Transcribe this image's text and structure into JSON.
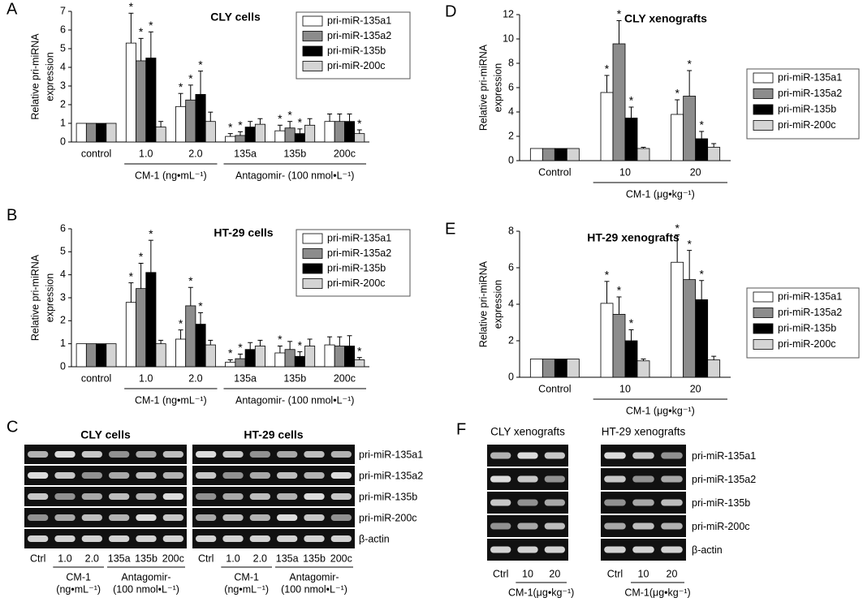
{
  "chart_data": [
    {
      "type": "bar",
      "panel": "A",
      "title": "CLY cells",
      "ylabel_lines": [
        "Relative pri-miRNA",
        "expression"
      ],
      "categories": [
        "control",
        "1.0",
        "2.0",
        "135a",
        "135b",
        "200c"
      ],
      "category_groups": [
        "CM-1 (ng•mL⁻¹)",
        "Antagomir- (100 nmol•L⁻¹)"
      ],
      "ylim": [
        0,
        7
      ],
      "yticks": [
        0,
        1,
        2,
        3,
        4,
        5,
        6,
        7
      ],
      "legend": "upper right",
      "series": [
        {
          "name": "pri-miR-135a1",
          "color": "#ffffff",
          "values": [
            1,
            5.3,
            1.9,
            0.3,
            0.6,
            1.1
          ],
          "errors": [
            0,
            1.6,
            0.7,
            0.15,
            0.3,
            0.4
          ],
          "stars": [
            null,
            "*",
            "*",
            "*",
            "*",
            null
          ]
        },
        {
          "name": "pri-miR-135a2",
          "color": "#8c8c8c",
          "values": [
            1,
            4.35,
            2.25,
            0.35,
            0.75,
            1.1
          ],
          "errors": [
            0,
            1.2,
            0.8,
            0.2,
            0.35,
            0.4
          ],
          "stars": [
            null,
            "*",
            "*",
            "*",
            "*",
            null
          ]
        },
        {
          "name": "pri-miR-135b",
          "color": "#000000",
          "values": [
            1,
            4.5,
            2.55,
            0.8,
            0.45,
            1.1
          ],
          "errors": [
            0,
            1.4,
            1.25,
            0.3,
            0.25,
            0.4
          ],
          "stars": [
            null,
            "*",
            "*",
            null,
            "*",
            null
          ]
        },
        {
          "name": "pri-miR-200c",
          "color": "#d4d4d4",
          "values": [
            1,
            0.8,
            1.1,
            0.95,
            0.9,
            0.45
          ],
          "errors": [
            0,
            0.3,
            0.5,
            0.3,
            0.35,
            0.2
          ],
          "stars": [
            null,
            null,
            null,
            null,
            null,
            "*"
          ]
        }
      ]
    },
    {
      "type": "bar",
      "panel": "B",
      "title": "HT-29 cells",
      "ylabel_lines": [
        "Relative pri-miRNA",
        "expression"
      ],
      "categories": [
        "control",
        "1.0",
        "2.0",
        "135a",
        "135b",
        "200c"
      ],
      "category_groups": [
        "CM-1 (ng•mL⁻¹)",
        "Antagomir- (100 nmol•L⁻¹)"
      ],
      "ylim": [
        0,
        6
      ],
      "yticks": [
        0,
        1,
        2,
        3,
        4,
        5,
        6
      ],
      "legend": "upper right",
      "series": [
        {
          "name": "pri-miR-135a1",
          "color": "#ffffff",
          "values": [
            1,
            2.8,
            1.2,
            0.2,
            0.6,
            0.95
          ],
          "errors": [
            0,
            0.85,
            0.4,
            0.1,
            0.3,
            0.35
          ],
          "stars": [
            null,
            "*",
            "*",
            "*",
            "*",
            null
          ]
        },
        {
          "name": "pri-miR-135a2",
          "color": "#8c8c8c",
          "values": [
            1,
            3.4,
            2.65,
            0.35,
            0.75,
            0.9
          ],
          "errors": [
            0,
            1.1,
            0.8,
            0.2,
            0.35,
            0.4
          ],
          "stars": [
            null,
            "*",
            "*",
            "*",
            null,
            null
          ]
        },
        {
          "name": "pri-miR-135b",
          "color": "#000000",
          "values": [
            1,
            4.1,
            1.85,
            0.75,
            0.45,
            0.9
          ],
          "errors": [
            0,
            1.4,
            0.5,
            0.3,
            0.2,
            0.45
          ],
          "stars": [
            null,
            "*",
            "*",
            null,
            "*",
            null
          ]
        },
        {
          "name": "pri-miR-200c",
          "color": "#d4d4d4",
          "values": [
            1,
            1.0,
            0.95,
            0.9,
            0.9,
            0.3
          ],
          "errors": [
            0,
            0.15,
            0.2,
            0.25,
            0.3,
            0.1
          ],
          "stars": [
            null,
            null,
            null,
            null,
            null,
            "*"
          ]
        }
      ]
    },
    {
      "type": "bar",
      "panel": "D",
      "title": "CLY  xenografts",
      "ylabel_lines": [
        "Relative pri-miRNA",
        "expression"
      ],
      "categories": [
        "Control",
        "10",
        "20"
      ],
      "category_groups": [
        "CM-1 (μg•kg⁻¹)"
      ],
      "ylim": [
        0,
        12
      ],
      "yticks": [
        0,
        2,
        4,
        6,
        8,
        10,
        12
      ],
      "legend": "right",
      "series": [
        {
          "name": "pri-miR-135a1",
          "color": "#ffffff",
          "values": [
            1,
            5.6,
            3.8
          ],
          "errors": [
            0,
            1.4,
            1.2
          ],
          "stars": [
            null,
            "*",
            "*"
          ]
        },
        {
          "name": "pri-miR-135a2",
          "color": "#8c8c8c",
          "values": [
            1,
            9.6,
            5.3
          ],
          "errors": [
            0,
            1.9,
            2.1
          ],
          "stars": [
            null,
            "*",
            "*"
          ]
        },
        {
          "name": "pri-miR-135b",
          "color": "#000000",
          "values": [
            1,
            3.5,
            1.8
          ],
          "errors": [
            0,
            0.9,
            0.6
          ],
          "stars": [
            null,
            "*",
            "*"
          ]
        },
        {
          "name": "pri-miR-200c",
          "color": "#d4d4d4",
          "values": [
            1,
            1.0,
            1.1
          ],
          "errors": [
            0,
            0.1,
            0.3
          ],
          "stars": [
            null,
            null,
            null
          ]
        }
      ]
    },
    {
      "type": "bar",
      "panel": "E",
      "title": "HT-29  xenografts",
      "ylabel_lines": [
        "Relative pri-miRNA",
        "expression"
      ],
      "categories": [
        "Control",
        "10",
        "20"
      ],
      "category_groups": [
        "CM-1 (μg•kg⁻¹)"
      ],
      "ylim": [
        0,
        8
      ],
      "yticks": [
        0,
        2,
        4,
        6,
        8
      ],
      "legend": "right",
      "series": [
        {
          "name": "pri-miR-135a1",
          "color": "#ffffff",
          "values": [
            1,
            4.05,
            6.3
          ],
          "errors": [
            0,
            1.2,
            1.5
          ],
          "stars": [
            null,
            "*",
            "*"
          ]
        },
        {
          "name": "pri-miR-135a2",
          "color": "#8c8c8c",
          "values": [
            1,
            3.45,
            5.35
          ],
          "errors": [
            0,
            0.95,
            1.6
          ],
          "stars": [
            null,
            "*",
            "*"
          ]
        },
        {
          "name": "pri-miR-135b",
          "color": "#000000",
          "values": [
            1,
            2.0,
            4.25
          ],
          "errors": [
            0,
            0.6,
            1.05
          ],
          "stars": [
            null,
            "*",
            "*"
          ]
        },
        {
          "name": "pri-miR-200c",
          "color": "#d4d4d4",
          "values": [
            1,
            0.9,
            0.95
          ],
          "errors": [
            0,
            0.1,
            0.2
          ],
          "stars": [
            null,
            null,
            null
          ]
        }
      ]
    }
  ],
  "gels": [
    {
      "panel": "C",
      "row_labels": [
        "pri-miR-135a1",
        "pri-miR-135a2",
        "pri-miR-135b",
        "pri-miR-200c",
        "β-actin"
      ],
      "blocks": [
        {
          "title": "CLY cells",
          "lanes": [
            "Ctrl",
            "1.0",
            "2.0",
            "135a",
            "135b",
            "200c"
          ],
          "groups": [
            [
              "CM-1",
              "(ng•mL⁻¹)"
            ],
            [
              "Antagomir-",
              "(100 nmol•L⁻¹)"
            ]
          ]
        },
        {
          "title": "HT-29 cells",
          "lanes": [
            "Ctrl",
            "1.0",
            "2.0",
            "135a",
            "135b",
            "200c"
          ],
          "groups": [
            [
              "CM-1",
              "(ng•mL⁻¹)"
            ],
            [
              "Antagomir-",
              "(100 nmol•L⁻¹)"
            ]
          ]
        }
      ]
    },
    {
      "panel": "F",
      "row_labels": [
        "pri-miR-135a1",
        "pri-miR-135a2",
        "pri-miR-135b",
        "pri-miR-200c",
        "β-actin"
      ],
      "blocks": [
        {
          "title": "CLY xenografts",
          "lanes": [
            "Ctrl",
            "10",
            "20"
          ],
          "groups": [
            [
              "CM-1(μg•kg⁻¹)"
            ]
          ]
        },
        {
          "title": "HT-29 xenografts",
          "lanes": [
            "Ctrl",
            "10",
            "20"
          ],
          "groups": [
            [
              "CM-1(μg•kg⁻¹)"
            ]
          ]
        }
      ]
    }
  ]
}
